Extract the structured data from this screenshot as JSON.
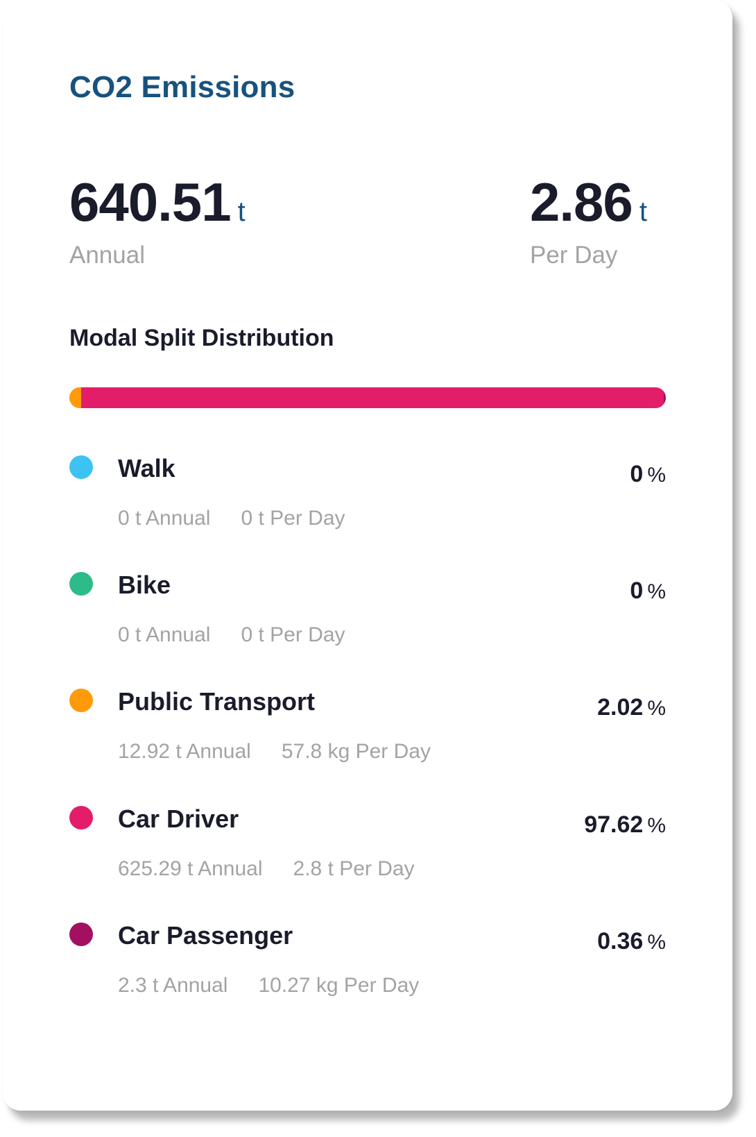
{
  "card": {
    "title": "CO2 Emissions",
    "annual": {
      "value": "640.51",
      "unit": "t",
      "label": "Annual"
    },
    "per_day": {
      "value": "2.86",
      "unit": "t",
      "label": "Per Day"
    },
    "section_title": "Modal Split Distribution"
  },
  "modes": [
    {
      "name": "Walk",
      "color": "#3cc3f1",
      "share": "0",
      "share_unit": "%",
      "annual": "0 t Annual",
      "per_day": "0 t Per Day",
      "fraction": 0
    },
    {
      "name": "Bike",
      "color": "#2dbb8a",
      "share": "0",
      "share_unit": "%",
      "annual": "0 t Annual",
      "per_day": "0 t Per Day",
      "fraction": 0
    },
    {
      "name": "Public Transport",
      "color": "#ff9a0a",
      "share": "2.02",
      "share_unit": "%",
      "annual": "12.92 t Annual",
      "per_day": "57.8 kg Per Day",
      "fraction": 0.0202
    },
    {
      "name": "Car Driver",
      "color": "#e31d6a",
      "share": "97.62",
      "share_unit": "%",
      "annual": "625.29 t Annual",
      "per_day": "2.8 t Per Day",
      "fraction": 0.9762
    },
    {
      "name": "Car Passenger",
      "color": "#a2105f",
      "share": "0.36",
      "share_unit": "%",
      "annual": "2.3 t Annual",
      "per_day": "10.27 kg Per Day",
      "fraction": 0.0036
    }
  ]
}
